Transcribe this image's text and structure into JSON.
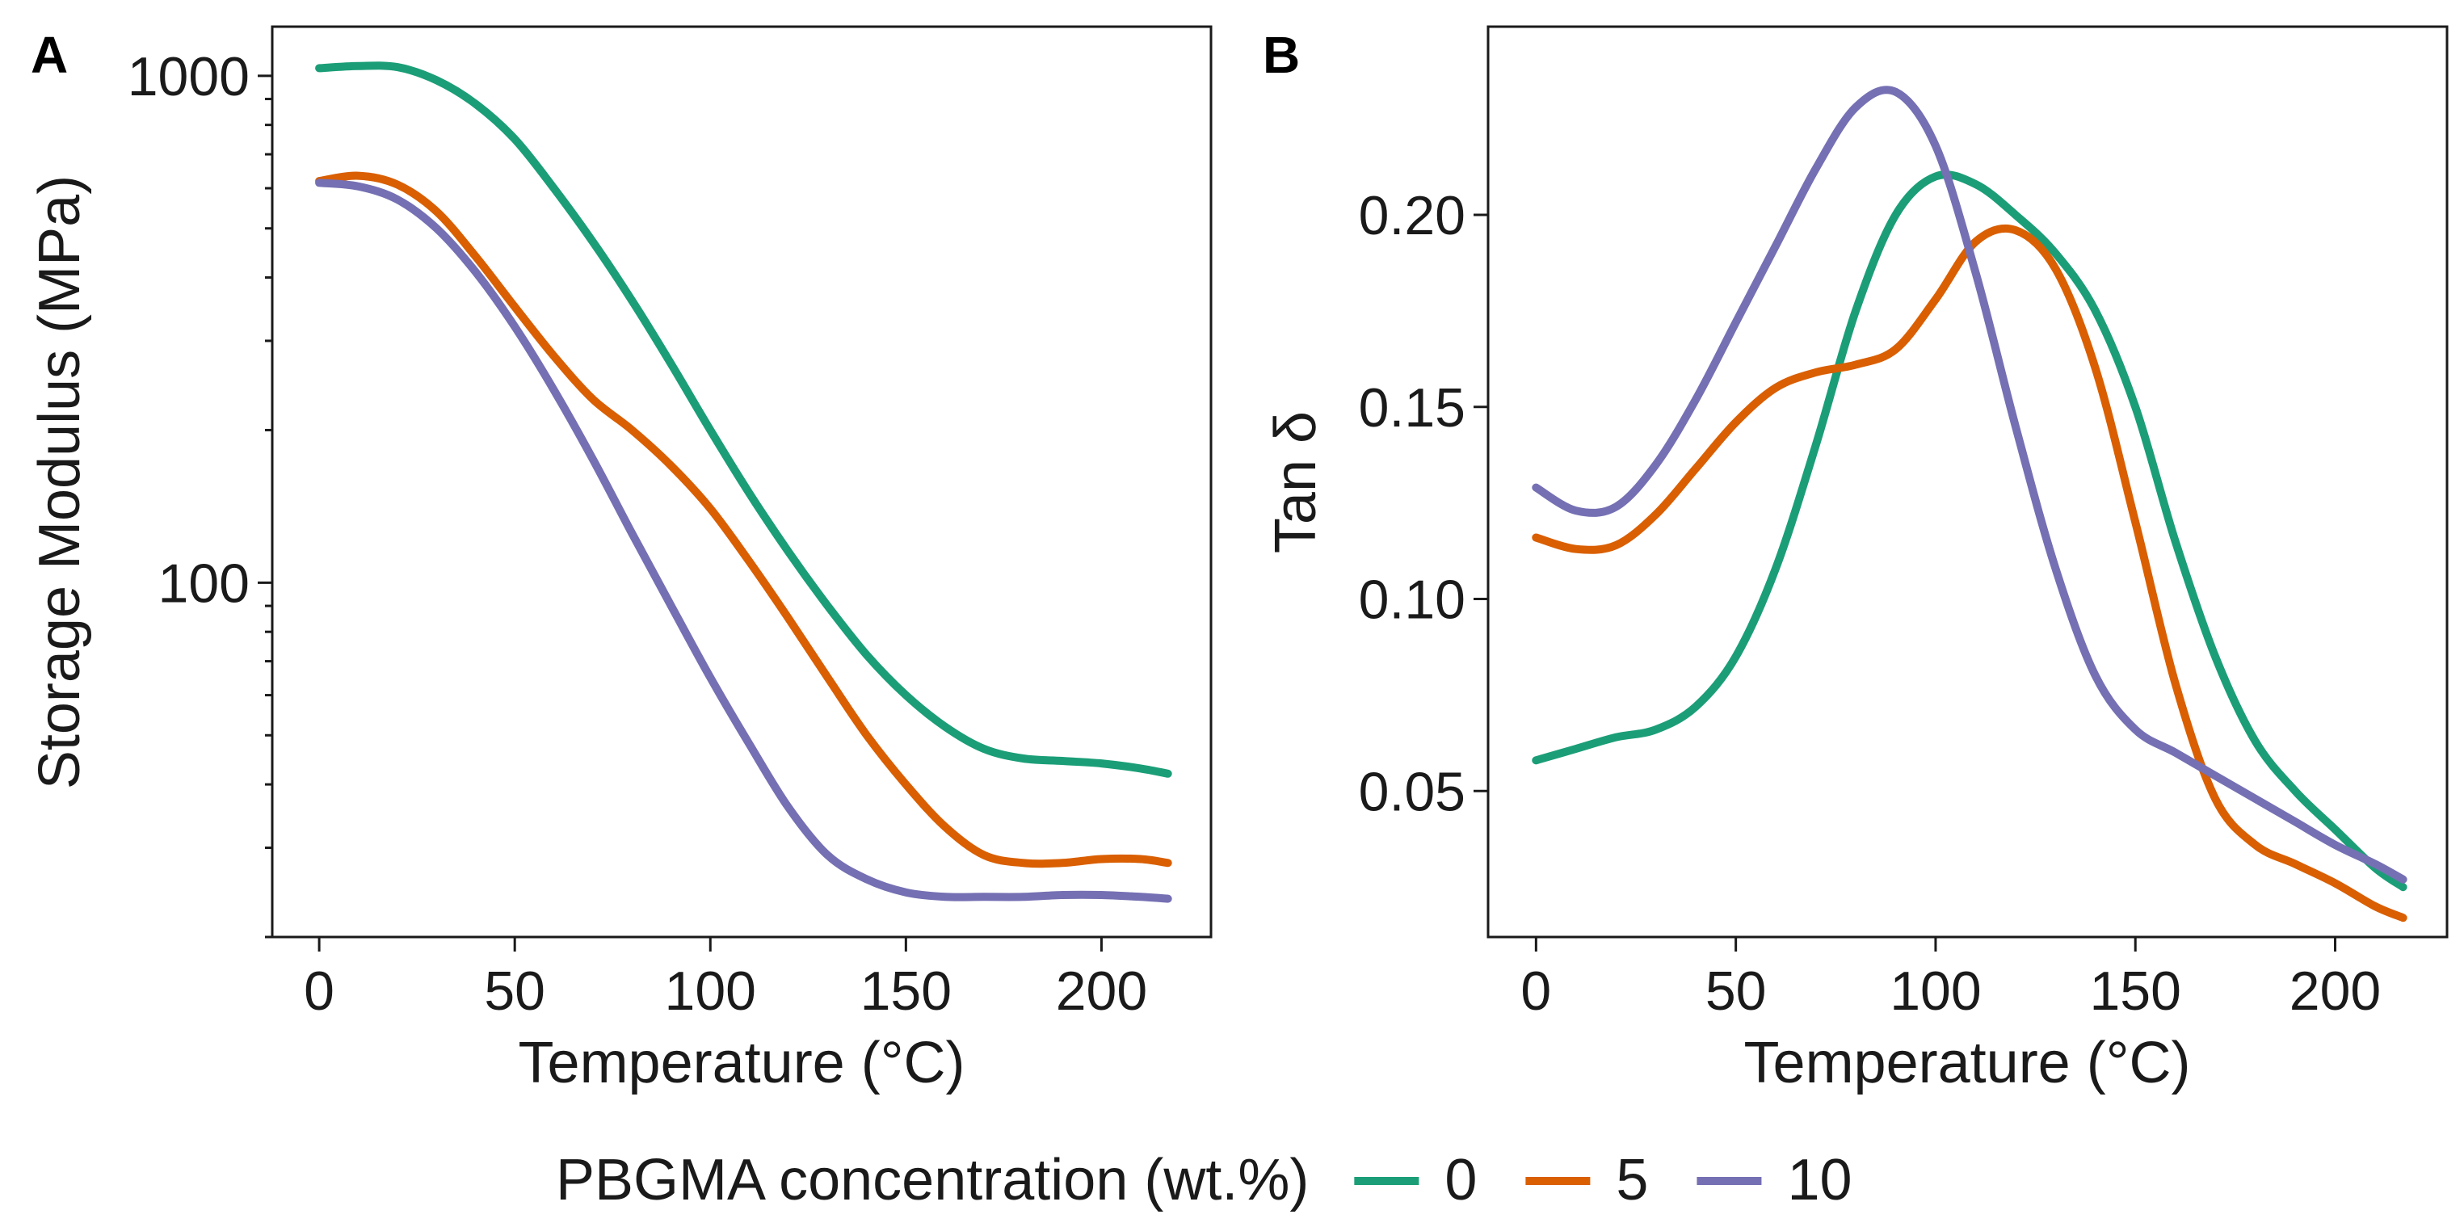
{
  "legend": {
    "title": "PBGMA concentration (wt.%)",
    "entries": [
      {
        "label": "0",
        "color": "#1b9e77"
      },
      {
        "label": "5",
        "color": "#d95f02"
      },
      {
        "label": "10",
        "color": "#7570b3"
      }
    ]
  },
  "chart_data": [
    {
      "type": "line",
      "panel": "A",
      "xlabel": "Temperature (°C)",
      "ylabel": "Storage Modulus (MPa)",
      "yscale": "log",
      "xlim": [
        -12,
        228
      ],
      "ylim": [
        20,
        1250
      ],
      "x_ticks": [
        0,
        50,
        100,
        150,
        200
      ],
      "x_tick_labels": [
        "0",
        "50",
        "100",
        "150",
        "200"
      ],
      "y_ticks": [
        100,
        1000
      ],
      "y_tick_labels": [
        "100",
        "1000"
      ],
      "y_minor_ticks": [
        20,
        30,
        40,
        50,
        60,
        70,
        80,
        90,
        200,
        300,
        400,
        500,
        600,
        700,
        800,
        900
      ],
      "series": [
        {
          "name": "0",
          "color": "#1b9e77",
          "x": [
            0,
            10,
            20,
            30,
            40,
            50,
            60,
            70,
            80,
            90,
            100,
            110,
            120,
            130,
            140,
            150,
            160,
            170,
            180,
            190,
            200,
            210,
            217
          ],
          "y": [
            1035,
            1045,
            1040,
            980,
            880,
            750,
            600,
            470,
            360,
            270,
            200,
            150,
            115,
            90,
            72,
            60,
            52,
            47,
            45,
            44.5,
            44,
            43,
            42
          ]
        },
        {
          "name": "5",
          "color": "#d95f02",
          "x": [
            0,
            10,
            20,
            30,
            40,
            50,
            60,
            70,
            80,
            90,
            100,
            110,
            120,
            130,
            140,
            150,
            160,
            170,
            180,
            190,
            200,
            210,
            217
          ],
          "y": [
            620,
            635,
            610,
            540,
            440,
            350,
            280,
            230,
            200,
            170,
            140,
            110,
            85,
            65,
            50,
            40,
            33,
            29,
            28,
            28,
            28.5,
            28.5,
            28
          ]
        },
        {
          "name": "10",
          "color": "#7570b3",
          "x": [
            0,
            10,
            20,
            30,
            40,
            50,
            60,
            70,
            80,
            90,
            100,
            110,
            120,
            130,
            140,
            150,
            160,
            170,
            180,
            190,
            200,
            210,
            217
          ],
          "y": [
            615,
            605,
            570,
            500,
            410,
            320,
            240,
            175,
            125,
            90,
            65,
            48,
            36,
            29,
            26,
            24.5,
            24,
            24,
            24,
            24.2,
            24.2,
            24,
            23.8
          ]
        }
      ]
    },
    {
      "type": "line",
      "panel": "B",
      "xlabel": "Temperature (°C)",
      "ylabel": "Tan δ",
      "xlim": [
        -12,
        228
      ],
      "ylim": [
        0.012,
        0.249
      ],
      "x_ticks": [
        0,
        50,
        100,
        150,
        200
      ],
      "x_tick_labels": [
        "0",
        "50",
        "100",
        "150",
        "200"
      ],
      "y_ticks": [
        0.05,
        0.1,
        0.15,
        0.2
      ],
      "y_tick_labels": [
        "0.05",
        "0.10",
        "0.15",
        "0.20"
      ],
      "series": [
        {
          "name": "0",
          "color": "#1b9e77",
          "x": [
            0,
            10,
            20,
            30,
            40,
            50,
            60,
            70,
            80,
            90,
            100,
            110,
            120,
            130,
            140,
            150,
            160,
            170,
            180,
            190,
            200,
            210,
            217
          ],
          "y": [
            0.058,
            0.061,
            0.064,
            0.066,
            0.072,
            0.085,
            0.108,
            0.14,
            0.175,
            0.2,
            0.21,
            0.208,
            0.2,
            0.19,
            0.175,
            0.15,
            0.115,
            0.085,
            0.063,
            0.05,
            0.04,
            0.03,
            0.025
          ]
        },
        {
          "name": "5",
          "color": "#d95f02",
          "x": [
            0,
            10,
            20,
            30,
            40,
            50,
            60,
            70,
            80,
            90,
            100,
            110,
            120,
            130,
            140,
            150,
            160,
            170,
            180,
            190,
            200,
            210,
            217
          ],
          "y": [
            0.116,
            0.113,
            0.114,
            0.122,
            0.134,
            0.146,
            0.155,
            0.159,
            0.161,
            0.165,
            0.178,
            0.193,
            0.196,
            0.186,
            0.16,
            0.12,
            0.078,
            0.048,
            0.036,
            0.031,
            0.026,
            0.02,
            0.017
          ]
        },
        {
          "name": "10",
          "color": "#7570b3",
          "x": [
            0,
            10,
            20,
            30,
            40,
            50,
            60,
            70,
            80,
            90,
            100,
            110,
            120,
            130,
            140,
            150,
            160,
            170,
            180,
            190,
            200,
            210,
            217
          ],
          "y": [
            0.129,
            0.123,
            0.124,
            0.135,
            0.152,
            0.172,
            0.192,
            0.212,
            0.228,
            0.232,
            0.218,
            0.185,
            0.145,
            0.108,
            0.08,
            0.066,
            0.06,
            0.054,
            0.048,
            0.042,
            0.036,
            0.031,
            0.027
          ]
        }
      ]
    }
  ]
}
